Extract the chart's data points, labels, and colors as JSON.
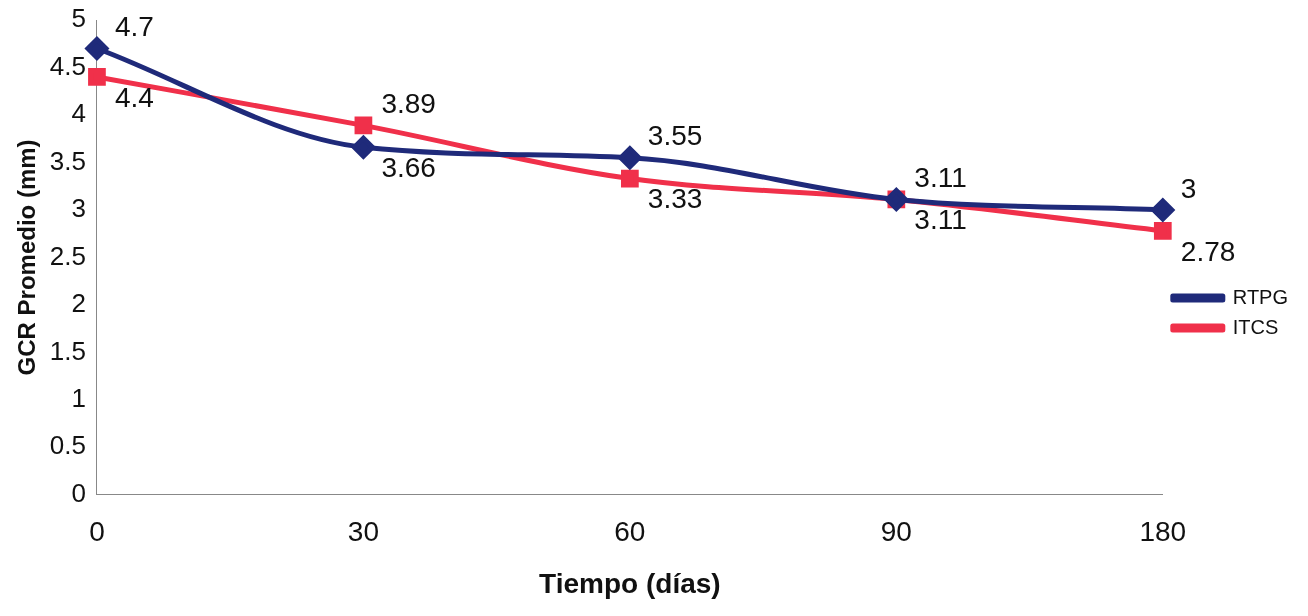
{
  "chart_data": {
    "type": "line",
    "xlabel": "Tiempo (días)",
    "ylabel": "GCR Promedio (mm)",
    "categories": [
      "0",
      "30",
      "60",
      "90",
      "180"
    ],
    "series": [
      {
        "name": "RTPG",
        "color": "#1f2a7a",
        "marker": "diamond",
        "values": [
          4.7,
          3.66,
          3.55,
          3.11,
          3
        ]
      },
      {
        "name": "ITCS",
        "color": "#f0304a",
        "marker": "square",
        "values": [
          4.4,
          3.89,
          3.33,
          3.11,
          2.78
        ]
      }
    ],
    "ylim": [
      0,
      5
    ],
    "yticks": [
      0,
      0.5,
      1,
      1.5,
      2,
      2.5,
      3,
      3.5,
      4,
      4.5,
      5
    ],
    "grid": false,
    "legend": "right",
    "data_labels": true,
    "line_style": "solid"
  }
}
